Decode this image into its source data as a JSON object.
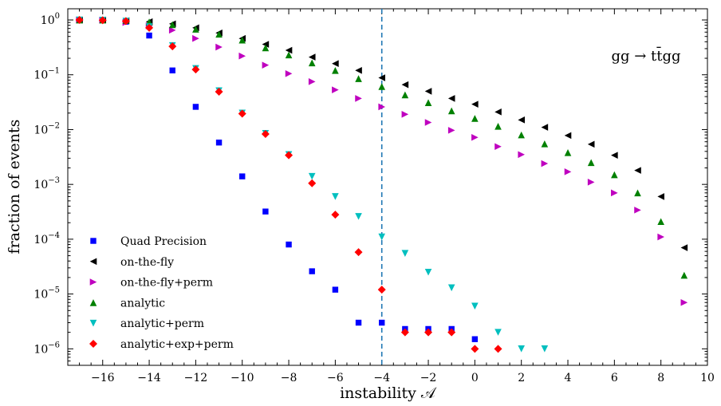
{
  "chart_data": {
    "type": "scatter",
    "xlabel": "instability 𝒜",
    "ylabel": "fraction of events",
    "xlim": [
      -17.5,
      10
    ],
    "ylim": [
      5e-07,
      1.6
    ],
    "yscale": "log",
    "x_ticks": [
      -16,
      -14,
      -12,
      -10,
      -8,
      -6,
      -4,
      -2,
      0,
      2,
      4,
      6,
      8,
      10
    ],
    "x_tick_labels": [
      "−16",
      "−14",
      "−12",
      "−10",
      "−8",
      "−6",
      "−4",
      "−2",
      "0",
      "2",
      "4",
      "6",
      "8",
      "10"
    ],
    "y_ticks": [
      1,
      0.1,
      0.01,
      0.001,
      0.0001,
      1e-05,
      1e-06
    ],
    "y_tick_labels": [
      {
        "base": "10",
        "exp": "0"
      },
      {
        "base": "10",
        "exp": "−1"
      },
      {
        "base": "10",
        "exp": "−2"
      },
      {
        "base": "10",
        "exp": "−3"
      },
      {
        "base": "10",
        "exp": "−4"
      },
      {
        "base": "10",
        "exp": "−5"
      },
      {
        "base": "10",
        "exp": "−6"
      }
    ],
    "annotation": "gg → tt̄gg",
    "vertical_line": {
      "x": -4,
      "color": "#1f77b4",
      "style": "dashed"
    },
    "legend_position": "lower-left",
    "series": [
      {
        "name": "Quad Precision",
        "marker": "square",
        "color": "#0000ff",
        "points": [
          [
            -17,
            1.0
          ],
          [
            -16,
            0.99
          ],
          [
            -15,
            0.93
          ],
          [
            -14,
            0.52
          ],
          [
            -13,
            0.12
          ],
          [
            -12,
            0.026
          ],
          [
            -11,
            0.0058
          ],
          [
            -10,
            0.0014
          ],
          [
            -9,
            0.00032
          ],
          [
            -8,
            8e-05
          ],
          [
            -7,
            2.6e-05
          ],
          [
            -6,
            1.2e-05
          ],
          [
            -5,
            3e-06
          ],
          [
            -4,
            3e-06
          ],
          [
            -3,
            2.3e-06
          ],
          [
            -2,
            2.3e-06
          ],
          [
            -1,
            2.3e-06
          ],
          [
            0,
            1.5e-06
          ]
        ]
      },
      {
        "name": "on-the-fly",
        "marker": "triangle-left",
        "color": "#000000",
        "points": [
          [
            -17,
            1.0
          ],
          [
            -16,
            1.0
          ],
          [
            -15,
            0.97
          ],
          [
            -14,
            0.93
          ],
          [
            -13,
            0.85
          ],
          [
            -12,
            0.72
          ],
          [
            -11,
            0.58
          ],
          [
            -10,
            0.46
          ],
          [
            -9,
            0.36
          ],
          [
            -8,
            0.28
          ],
          [
            -7,
            0.21
          ],
          [
            -6,
            0.16
          ],
          [
            -5,
            0.12
          ],
          [
            -4,
            0.088
          ],
          [
            -3,
            0.066
          ],
          [
            -2,
            0.05
          ],
          [
            -1,
            0.037
          ],
          [
            0,
            0.029
          ],
          [
            1,
            0.021
          ],
          [
            2,
            0.015
          ],
          [
            3,
            0.011
          ],
          [
            4,
            0.0078
          ],
          [
            5,
            0.0054
          ],
          [
            6,
            0.0034
          ],
          [
            7,
            0.0018
          ],
          [
            8,
            0.0006
          ],
          [
            9,
            7e-05
          ]
        ]
      },
      {
        "name": "on-the-fly+perm",
        "marker": "triangle-right",
        "color": "#bf00bf",
        "points": [
          [
            -17,
            1.0
          ],
          [
            -16,
            0.99
          ],
          [
            -15,
            0.9
          ],
          [
            -14,
            0.78
          ],
          [
            -13,
            0.65
          ],
          [
            -12,
            0.46
          ],
          [
            -11,
            0.32
          ],
          [
            -10,
            0.22
          ],
          [
            -9,
            0.15
          ],
          [
            -8,
            0.105
          ],
          [
            -7,
            0.075
          ],
          [
            -6,
            0.053
          ],
          [
            -5,
            0.037
          ],
          [
            -4,
            0.026
          ],
          [
            -3,
            0.019
          ],
          [
            -2,
            0.0135
          ],
          [
            -1,
            0.0097
          ],
          [
            0,
            0.0072
          ],
          [
            1,
            0.0049
          ],
          [
            2,
            0.0035
          ],
          [
            3,
            0.0024
          ],
          [
            4,
            0.0017
          ],
          [
            5,
            0.0011
          ],
          [
            6,
            0.0007
          ],
          [
            7,
            0.00034
          ],
          [
            8,
            0.00011
          ],
          [
            9,
            7e-06
          ]
        ]
      },
      {
        "name": "analytic",
        "marker": "triangle-up",
        "color": "#008000",
        "points": [
          [
            -17,
            1.0
          ],
          [
            -16,
            1.0
          ],
          [
            -15,
            0.98
          ],
          [
            -14,
            0.92
          ],
          [
            -13,
            0.82
          ],
          [
            -12,
            0.68
          ],
          [
            -11,
            0.55
          ],
          [
            -10,
            0.43
          ],
          [
            -9,
            0.31
          ],
          [
            -8,
            0.23
          ],
          [
            -7,
            0.165
          ],
          [
            -6,
            0.12
          ],
          [
            -5,
            0.085
          ],
          [
            -4,
            0.061
          ],
          [
            -3,
            0.043
          ],
          [
            -2,
            0.031
          ],
          [
            -1,
            0.022
          ],
          [
            0,
            0.016
          ],
          [
            1,
            0.0115
          ],
          [
            2,
            0.008
          ],
          [
            3,
            0.0055
          ],
          [
            4,
            0.0038
          ],
          [
            5,
            0.0025
          ],
          [
            6,
            0.0015
          ],
          [
            7,
            0.0007
          ],
          [
            8,
            0.00021
          ],
          [
            9,
            2.2e-05
          ]
        ]
      },
      {
        "name": "analytic+perm",
        "marker": "triangle-down",
        "color": "#00bfbf",
        "points": [
          [
            -17,
            1.0
          ],
          [
            -16,
            0.99
          ],
          [
            -15,
            0.95
          ],
          [
            -14,
            0.75
          ],
          [
            -13,
            0.34
          ],
          [
            -12,
            0.13
          ],
          [
            -11,
            0.051
          ],
          [
            -10,
            0.02
          ],
          [
            -9,
            0.0085
          ],
          [
            -8,
            0.0035
          ],
          [
            -7,
            0.0014
          ],
          [
            -6,
            0.0006
          ],
          [
            -5,
            0.00026
          ],
          [
            -4,
            0.00011
          ],
          [
            -3,
            5.5e-05
          ],
          [
            -2,
            2.5e-05
          ],
          [
            -1,
            1.3e-05
          ],
          [
            0,
            6e-06
          ],
          [
            1,
            2e-06
          ],
          [
            2,
            1e-06
          ],
          [
            3,
            1e-06
          ]
        ]
      },
      {
        "name": "analytic+exp+perm",
        "marker": "diamond",
        "color": "#ff0000",
        "points": [
          [
            -17,
            1.0
          ],
          [
            -16,
            0.99
          ],
          [
            -15,
            0.95
          ],
          [
            -14,
            0.72
          ],
          [
            -13,
            0.33
          ],
          [
            -12,
            0.125
          ],
          [
            -11,
            0.049
          ],
          [
            -10,
            0.0195
          ],
          [
            -9,
            0.0083
          ],
          [
            -8,
            0.0034
          ],
          [
            -7,
            0.00105
          ],
          [
            -6,
            0.00028
          ],
          [
            -5,
            5.8e-05
          ],
          [
            -4,
            1.2e-05
          ],
          [
            -3,
            2e-06
          ],
          [
            -2,
            2e-06
          ],
          [
            -1,
            2e-06
          ],
          [
            0,
            1e-06
          ],
          [
            1,
            1e-06
          ]
        ]
      }
    ]
  }
}
